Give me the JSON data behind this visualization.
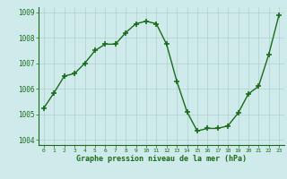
{
  "x": [
    0,
    1,
    2,
    3,
    4,
    5,
    6,
    7,
    8,
    9,
    10,
    11,
    12,
    13,
    14,
    15,
    16,
    17,
    18,
    19,
    20,
    21,
    22,
    23
  ],
  "y": [
    1005.25,
    1005.85,
    1006.5,
    1006.6,
    1007.0,
    1007.5,
    1007.75,
    1007.75,
    1008.2,
    1008.55,
    1008.65,
    1008.55,
    1007.75,
    1006.3,
    1005.1,
    1004.35,
    1004.45,
    1004.45,
    1004.55,
    1005.05,
    1005.8,
    1006.1,
    1007.35,
    1008.9
  ],
  "ylim": [
    1003.8,
    1009.2
  ],
  "xlim": [
    -0.5,
    23.5
  ],
  "yticks": [
    1004,
    1005,
    1006,
    1007,
    1008,
    1009
  ],
  "xticks": [
    0,
    1,
    2,
    3,
    4,
    5,
    6,
    7,
    8,
    9,
    10,
    11,
    12,
    13,
    14,
    15,
    16,
    17,
    18,
    19,
    20,
    21,
    22,
    23
  ],
  "xlabel": "Graphe pression niveau de la mer (hPa)",
  "line_color": "#1a6b1a",
  "marker": "+",
  "marker_size": 4,
  "bg_color": "#ceeaea",
  "grid_color": "#b0d0d0",
  "tick_label_color": "#1a6b1a",
  "xlabel_color": "#1a6b1a",
  "line_width": 1.0,
  "marker_edge_width": 1.2
}
